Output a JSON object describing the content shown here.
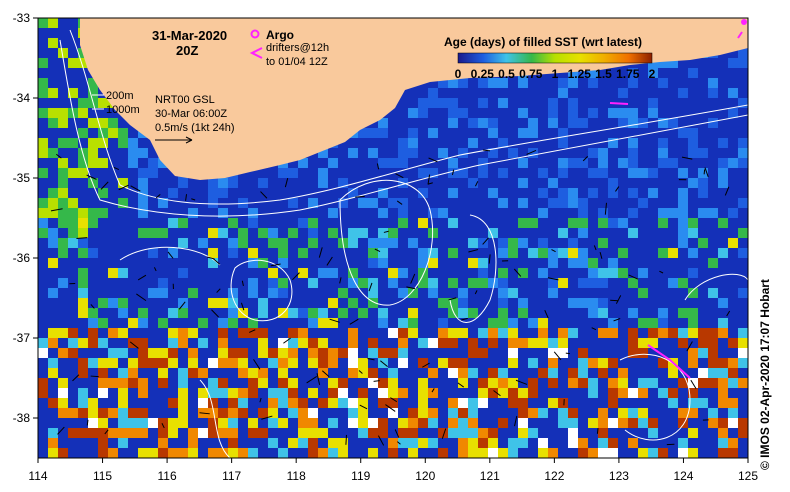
{
  "header": {
    "date": "31-Mar-2020",
    "time": "20Z"
  },
  "legend_argo": {
    "argo_label": "Argo",
    "drifters_line1": "drifters@12h",
    "drifters_line2": "to 01/04 12Z"
  },
  "depth_contours": {
    "shallow": "200m",
    "deep": "1000m"
  },
  "currents_info": {
    "model": "NRT00 GSL",
    "datetime": "30-Mar 06:00Z",
    "scale": "0.5m/s (1kt 24h)"
  },
  "colorbar": {
    "title": "Age (days) of filled SST (wrt latest)",
    "labels": [
      "0",
      "0.25",
      "0.5",
      "0.75",
      "1",
      "1.25",
      "1.5",
      "1.75",
      "2"
    ],
    "min": 0,
    "max": 2
  },
  "colors": {
    "land": "#f9c99c",
    "ocean_deep": "#1430b8",
    "ocean_mid": "#1e5ee0",
    "fresh": "#2a8cf0",
    "cyan": "#3fc3e8",
    "green": "#35b84a",
    "yellow": "#e8e000",
    "orange": "#f08800",
    "brown": "#b83800",
    "argo_magenta": "#ff20ff"
  },
  "map": {
    "xlim": [
      114,
      125
    ],
    "ylim": [
      -38.5,
      -33
    ],
    "x_ticks": [
      "114",
      "115",
      "116",
      "117",
      "118",
      "119",
      "120",
      "121",
      "122",
      "123",
      "124",
      "125"
    ],
    "y_ticks": [
      "-33",
      "-34",
      "-35",
      "-36",
      "-37",
      "-38"
    ]
  },
  "credit": "© IMOS 02-Apr-2020 17:07 Hobart"
}
